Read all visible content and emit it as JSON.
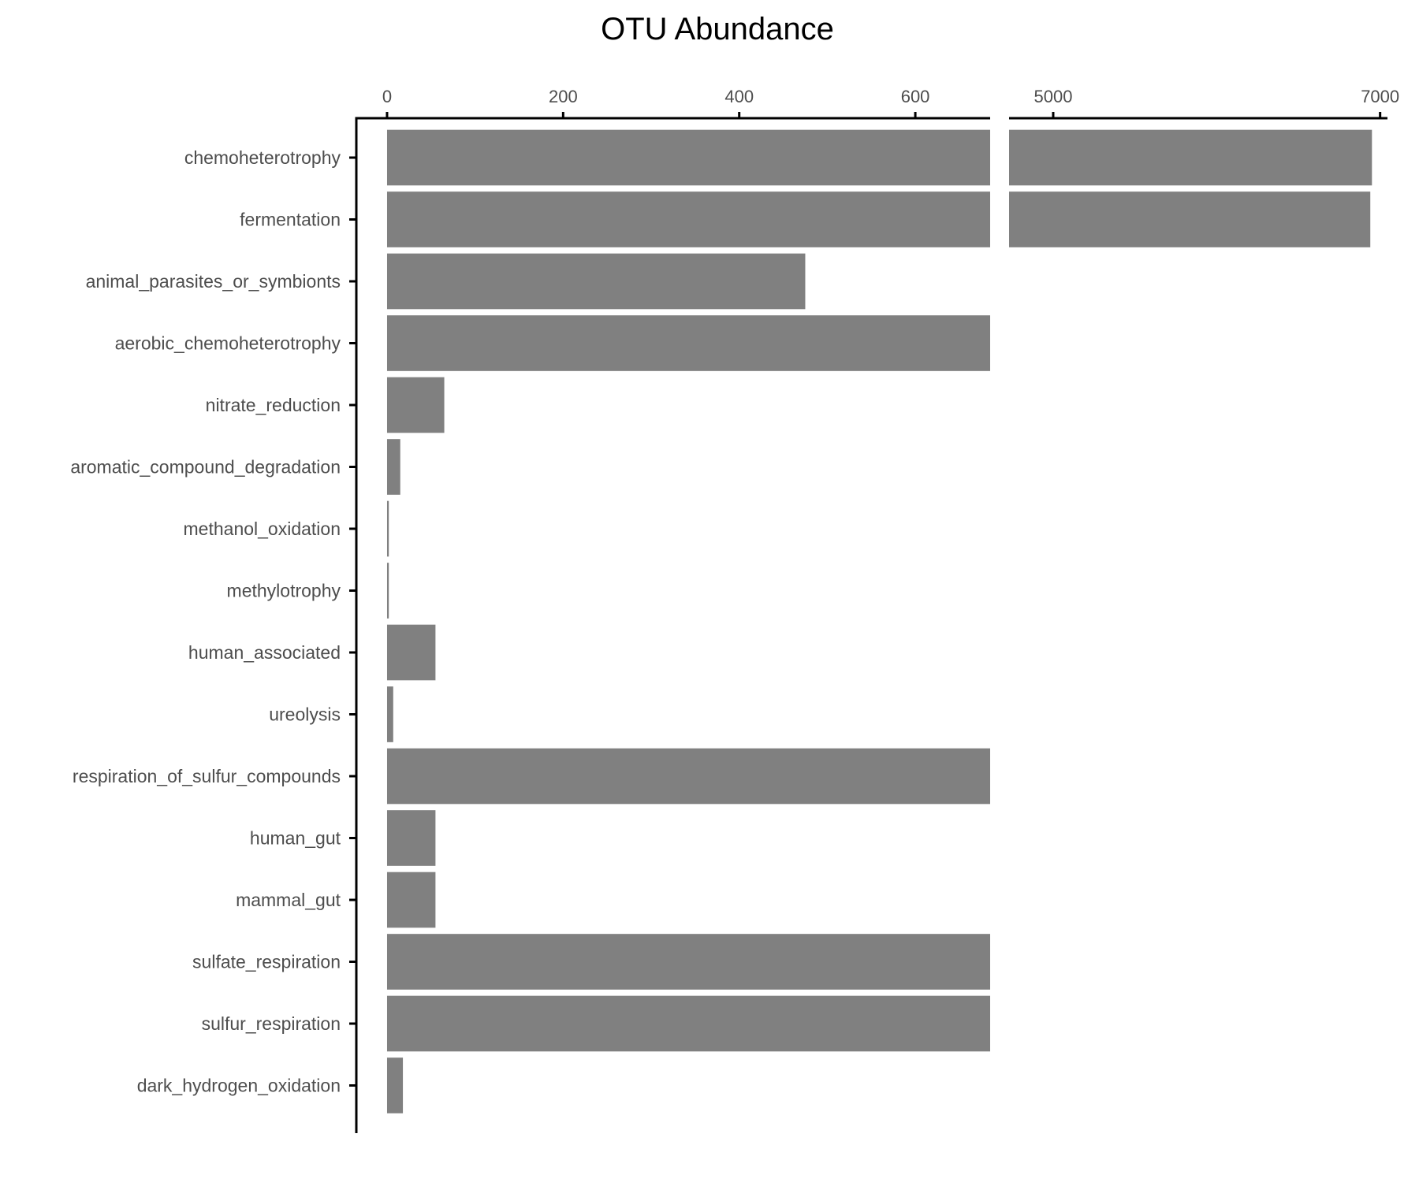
{
  "chart_data": {
    "type": "bar",
    "orientation": "horizontal",
    "title": "OTU Abundance",
    "xlabel": "",
    "ylabel": "",
    "bar_color": "#808080",
    "axis_color": "#000000",
    "axis_position": "top",
    "grid": false,
    "broken_axis": {
      "segments": [
        {
          "range": [
            -34,
            685
          ],
          "ticks": [
            0,
            200,
            400,
            600
          ],
          "tick_labels": [
            "0",
            "200",
            "400",
            "600"
          ]
        },
        {
          "range": [
            4730,
            7045
          ],
          "ticks": [
            5000,
            7000
          ],
          "tick_labels": [
            "5000",
            "7000"
          ]
        }
      ]
    },
    "categories": [
      "chemoheterotrophy",
      "fermentation",
      "animal_parasites_or_symbionts",
      "aerobic_chemoheterotrophy",
      "nitrate_reduction",
      "aromatic_compound_degradation",
      "methanol_oxidation",
      "methylotrophy",
      "human_associated",
      "ureolysis",
      "respiration_of_sulfur_compounds",
      "human_gut",
      "mammal_gut",
      "sulfate_respiration",
      "sulfur_respiration",
      "dark_hydrogen_oxidation"
    ],
    "values": [
      6950,
      6940,
      475,
      685,
      65,
      15,
      2,
      2,
      55,
      7,
      685,
      55,
      55,
      685,
      685,
      18
    ]
  }
}
